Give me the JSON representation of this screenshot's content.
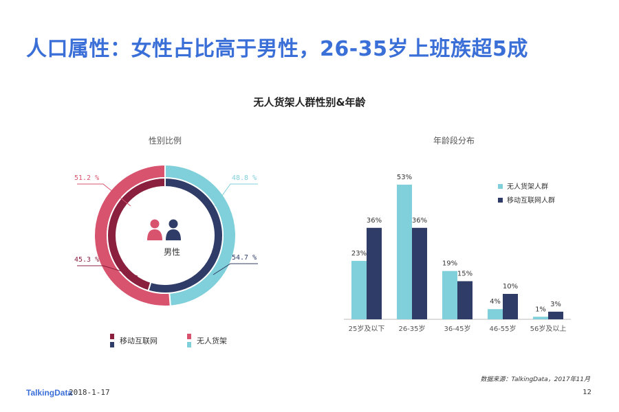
{
  "page": {
    "title": "人口属性：女性占比高于男性，26-35岁上班族超5成",
    "footer_logo": "TalkingData",
    "footer_date": "2018-1-17",
    "source": "数据来源：TalkingData，2017年11月",
    "page_number": "12"
  },
  "colors": {
    "title": "#3b6fd8",
    "mobile_female": "#8a1f3e",
    "mobile_male": "#2f3c68",
    "unmanned_female": "#d8536e",
    "unmanned_male": "#7fd0da"
  },
  "chart_data": [
    {
      "type": "pie",
      "title": "无人货架人群性别&年龄",
      "panel_title": "性别比例",
      "center_label": "男性",
      "rings": [
        {
          "name": "无人货架",
          "slices": [
            {
              "label": "女性",
              "value": 51.2,
              "display": "51.2 %"
            },
            {
              "label": "男性",
              "value": 48.8,
              "display": "48.8 %"
            }
          ]
        },
        {
          "name": "移动互联网",
          "slices": [
            {
              "label": "女性",
              "value": 45.3,
              "display": "45.3 %"
            },
            {
              "label": "男性",
              "value": 54.7,
              "display": "54.7 %"
            }
          ]
        }
      ],
      "legend": [
        "移动互联网",
        "无人货架"
      ]
    },
    {
      "type": "bar",
      "panel_title": "年龄段分布",
      "categories": [
        "25岁及以下",
        "26-35岁",
        "36-45岁",
        "46-55岁",
        "56岁及以上"
      ],
      "series": [
        {
          "name": "无人货架人群",
          "values": [
            23,
            53,
            19,
            4,
            1
          ],
          "labels": [
            "23%",
            "53%",
            "19%",
            "4%",
            "1%"
          ]
        },
        {
          "name": "移动互联网人群",
          "values": [
            36,
            36,
            15,
            10,
            3
          ],
          "labels": [
            "36%",
            "36%",
            "15%",
            "10%",
            "3%"
          ]
        }
      ],
      "ylim": [
        0,
        60
      ],
      "legend_position": "top-right"
    }
  ]
}
